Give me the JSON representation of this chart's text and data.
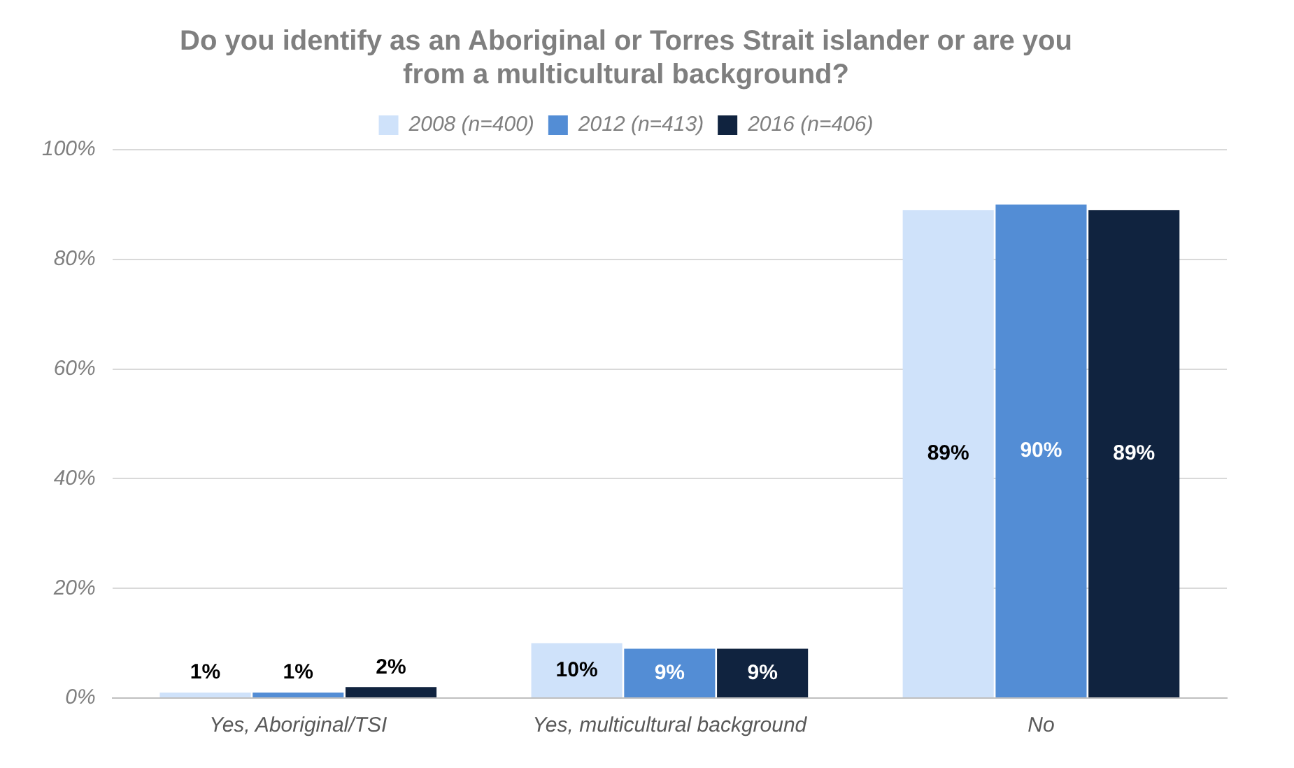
{
  "chart_data": {
    "type": "bar",
    "title": "Do you identify as an Aboriginal or Torres Strait islander or are you from a multicultural background?",
    "categories": [
      "Yes, Aboriginal/TSI",
      "Yes, multicultural background",
      "No"
    ],
    "series": [
      {
        "name": "2008 (n=400)",
        "color": "#cfe2fa",
        "values": [
          1,
          10,
          89
        ],
        "value_labels": [
          "1%",
          "10%",
          "89%"
        ]
      },
      {
        "name": "2012 (n=413)",
        "color": "#538dd5",
        "values": [
          1,
          9,
          90
        ],
        "value_labels": [
          "1%",
          "9%",
          "90%"
        ]
      },
      {
        "name": "2016 (n=406)",
        "color": "#10233f",
        "values": [
          2,
          9,
          89
        ],
        "value_labels": [
          "2%",
          "9%",
          "89%"
        ]
      }
    ],
    "ylim": [
      0,
      100
    ],
    "yticks": [
      {
        "value": 0,
        "label": "0%"
      },
      {
        "value": 20,
        "label": "20%"
      },
      {
        "value": 40,
        "label": "40%"
      },
      {
        "value": 60,
        "label": "60%"
      },
      {
        "value": 80,
        "label": "80%"
      },
      {
        "value": 100,
        "label": "100%"
      }
    ],
    "grid": "y",
    "legend": "top"
  }
}
